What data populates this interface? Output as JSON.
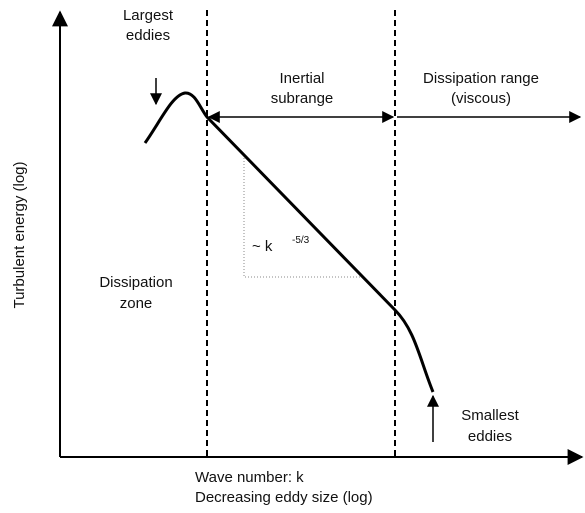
{
  "diagram": {
    "largest_eddies": [
      "Largest",
      "eddies"
    ],
    "inertial_subrange": [
      "Inertial",
      "subrange"
    ],
    "dissipation_range": [
      "Dissipation range",
      "(viscous)"
    ],
    "y_axis_label": "Turbulent energy (log)",
    "dissipation_zone": [
      "Dissipation",
      "zone"
    ],
    "slope_label": "~ k",
    "slope_exponent": "-5/3",
    "smallest_eddies": [
      "Smallest",
      "eddies"
    ],
    "x_axis_label": [
      "Wave number: k",
      "Decreasing eddy size (log)"
    ]
  }
}
